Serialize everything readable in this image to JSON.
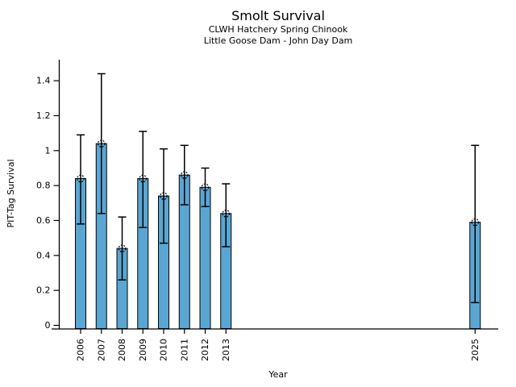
{
  "figure": {
    "title": "Smolt Survival",
    "subtitle_line1": "CLWH Hatchery Spring Chinook",
    "subtitle_line2": "Little Goose Dam - John Day Dam"
  },
  "chart_data": {
    "type": "bar",
    "title": "Smolt Survival",
    "subtitle": [
      "CLWH Hatchery Spring Chinook",
      "Little Goose Dam - John Day Dam"
    ],
    "xlabel": "Year",
    "ylabel": "PIT-Tag Survival",
    "x_axis": "linear years, labels rotated 90",
    "ylim": [
      0,
      1.52
    ],
    "yticks": [
      0,
      0.2,
      0.4,
      0.6,
      0.8,
      1,
      1.2,
      1.4
    ],
    "ytick_labels": [
      "0",
      "0.2",
      "0.4",
      "0.6",
      "0.8",
      "1",
      "1.2",
      "1.4"
    ],
    "grid": false,
    "legend": null,
    "bar_color": "#5AA6D3",
    "bar_edge_color": "#000000",
    "error_bar_color": "#000000",
    "marker_style": "open-circle-dashed-edge",
    "points": [
      {
        "year": 2006,
        "label": "2006",
        "value": 0.84,
        "err_low": 0.58,
        "err_high": 1.09
      },
      {
        "year": 2007,
        "label": "2007",
        "value": 1.04,
        "err_low": 0.64,
        "err_high": 1.44
      },
      {
        "year": 2008,
        "label": "2008",
        "value": 0.44,
        "err_low": 0.26,
        "err_high": 0.62
      },
      {
        "year": 2009,
        "label": "2009",
        "value": 0.84,
        "err_low": 0.56,
        "err_high": 1.11
      },
      {
        "year": 2010,
        "label": "2010",
        "value": 0.74,
        "err_low": 0.47,
        "err_high": 1.01
      },
      {
        "year": 2011,
        "label": "2011",
        "value": 0.86,
        "err_low": 0.69,
        "err_high": 1.03
      },
      {
        "year": 2012,
        "label": "2012",
        "value": 0.79,
        "err_low": 0.68,
        "err_high": 0.9
      },
      {
        "year": 2013,
        "label": "2013",
        "value": 0.64,
        "err_low": 0.45,
        "err_high": 0.81
      },
      {
        "year": 2025,
        "label": "2025",
        "value": 0.59,
        "err_low": 0.13,
        "err_high": 1.03
      }
    ]
  }
}
